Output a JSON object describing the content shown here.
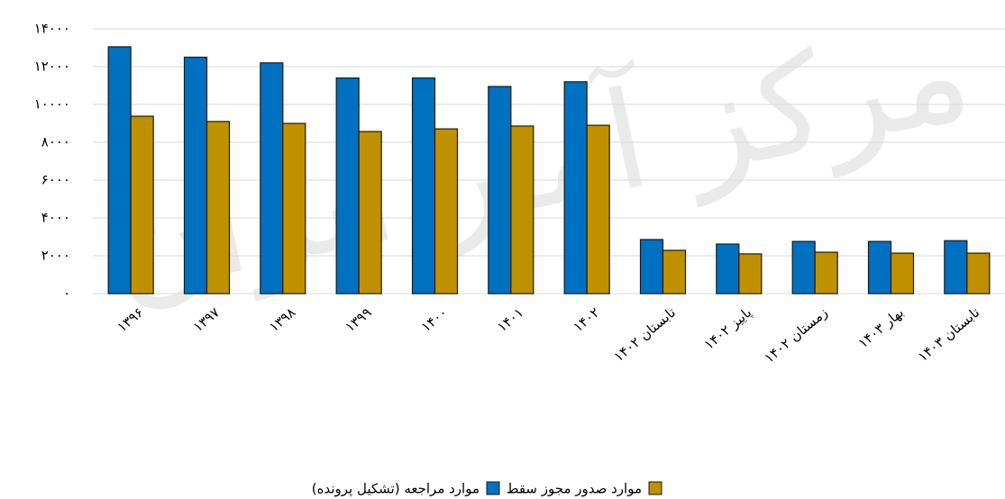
{
  "chart_data": {
    "type": "bar",
    "watermark": "مرکز آمار ایران",
    "categories": [
      "۱۳۹۶",
      "۱۳۹۷",
      "۱۳۹۸",
      "۱۳۹۹",
      "۱۴۰۰",
      "۱۴۰۱",
      "۱۴۰۲",
      "تابستان ۱۴۰۲",
      "پاییز ۱۴۰۲",
      "زمستان ۱۴۰۲",
      "بهار ۱۴۰۳",
      "تابستان ۱۴۰۳"
    ],
    "series": [
      {
        "name": "موارد مراجعه (تشکیل پرونده)",
        "color": "#0070c0",
        "values": [
          13050,
          12500,
          12200,
          11400,
          11400,
          10950,
          11200,
          2860,
          2620,
          2760,
          2760,
          2800
        ]
      },
      {
        "name": "موارد صدور مجوز سقط",
        "color": "#bf9000",
        "values": [
          9380,
          9100,
          9000,
          8570,
          8710,
          8860,
          8900,
          2290,
          2100,
          2190,
          2140,
          2140
        ]
      }
    ],
    "ylim": [
      0,
      14000
    ],
    "yticks": [
      {
        "value": 0,
        "label": "٠"
      },
      {
        "value": 2000,
        "label": "۲٠٠٠"
      },
      {
        "value": 4000,
        "label": "۴٠٠٠"
      },
      {
        "value": 6000,
        "label": "۶٠٠٠"
      },
      {
        "value": 8000,
        "label": "۸٠٠٠"
      },
      {
        "value": 10000,
        "label": "۱٠٠٠٠"
      },
      {
        "value": 12000,
        "label": "۱۲٠٠٠"
      },
      {
        "value": 14000,
        "label": "۱۴٠٠٠"
      }
    ],
    "grid": true
  }
}
